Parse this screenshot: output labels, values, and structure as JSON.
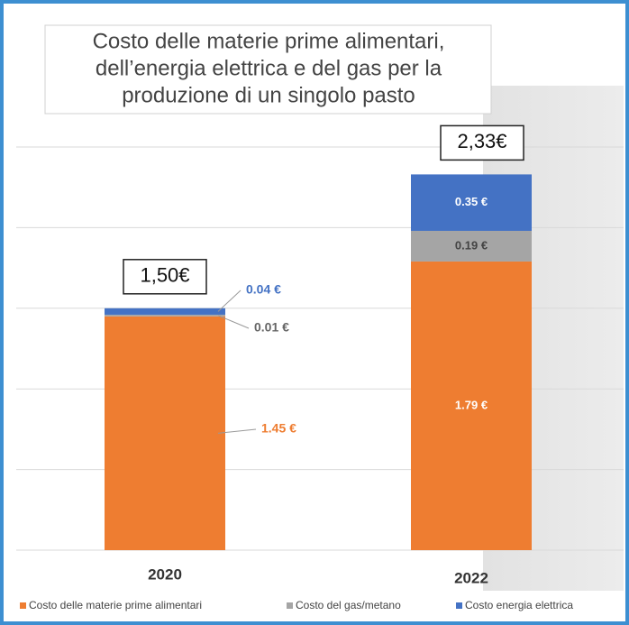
{
  "chart_data": {
    "type": "stacked_bar",
    "title": [
      "Costo delle materie prime alimentari,",
      "dell’energia elettrica e del gas per la",
      "produzione di un singolo pasto"
    ],
    "categories": [
      "2020",
      "2022"
    ],
    "series": [
      {
        "name": "Costo delle materie prime alimentari",
        "color": "#ee7d31",
        "values": [
          1.45,
          1.79
        ],
        "value_labels": [
          "1.45 €",
          "1.79 €"
        ]
      },
      {
        "name": "Costo del gas/metano",
        "color": "#a5a5a5",
        "values": [
          0.01,
          0.19
        ],
        "value_labels": [
          "0.01 €",
          "0.19 €"
        ]
      },
      {
        "name": "Costo energia elettrica",
        "color": "#4472c4",
        "values": [
          0.04,
          0.35
        ],
        "value_labels": [
          "0.04 €",
          "0.35 €"
        ]
      }
    ],
    "totals": [
      1.5,
      2.33
    ],
    "total_labels": [
      "1,50€",
      "2,33€"
    ],
    "ylim": [
      0,
      2.5
    ],
    "yticks": [
      0,
      0.5,
      1,
      1.5,
      2,
      2.5
    ],
    "grid": true
  }
}
